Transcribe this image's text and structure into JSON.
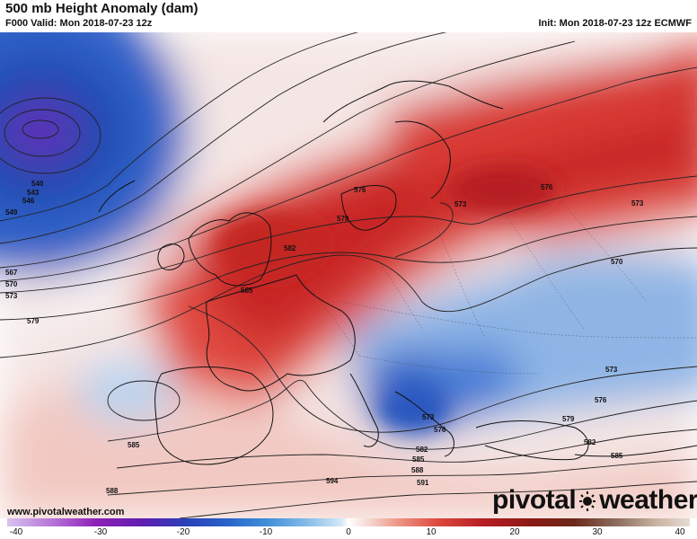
{
  "header": {
    "title": "500 mb Height Anomaly (dam)",
    "valid": "F000 Valid: Mon 2018-07-23 12z",
    "init": "Init: Mon 2018-07-23 12z ECMWF"
  },
  "footer": {
    "website": "www.pivotalweather.com",
    "logo_part1": "pivotal",
    "logo_part2": "weather"
  },
  "colorbar": {
    "ticks": [
      "-40",
      "-30",
      "-20",
      "-10",
      "0",
      "10",
      "20",
      "30",
      "40"
    ]
  },
  "contour_labels": [
    "540",
    "543",
    "546",
    "549",
    "567",
    "570",
    "573",
    "579",
    "576",
    "579",
    "582",
    "585",
    "573",
    "576",
    "573",
    "570",
    "573",
    "576",
    "579",
    "582",
    "585",
    "588",
    "591",
    "594",
    "585",
    "573",
    "576",
    "582",
    "585",
    "588"
  ],
  "colors": {
    "positive": "#d8332e",
    "negative": "#2f63c6",
    "contour": "#222222"
  }
}
